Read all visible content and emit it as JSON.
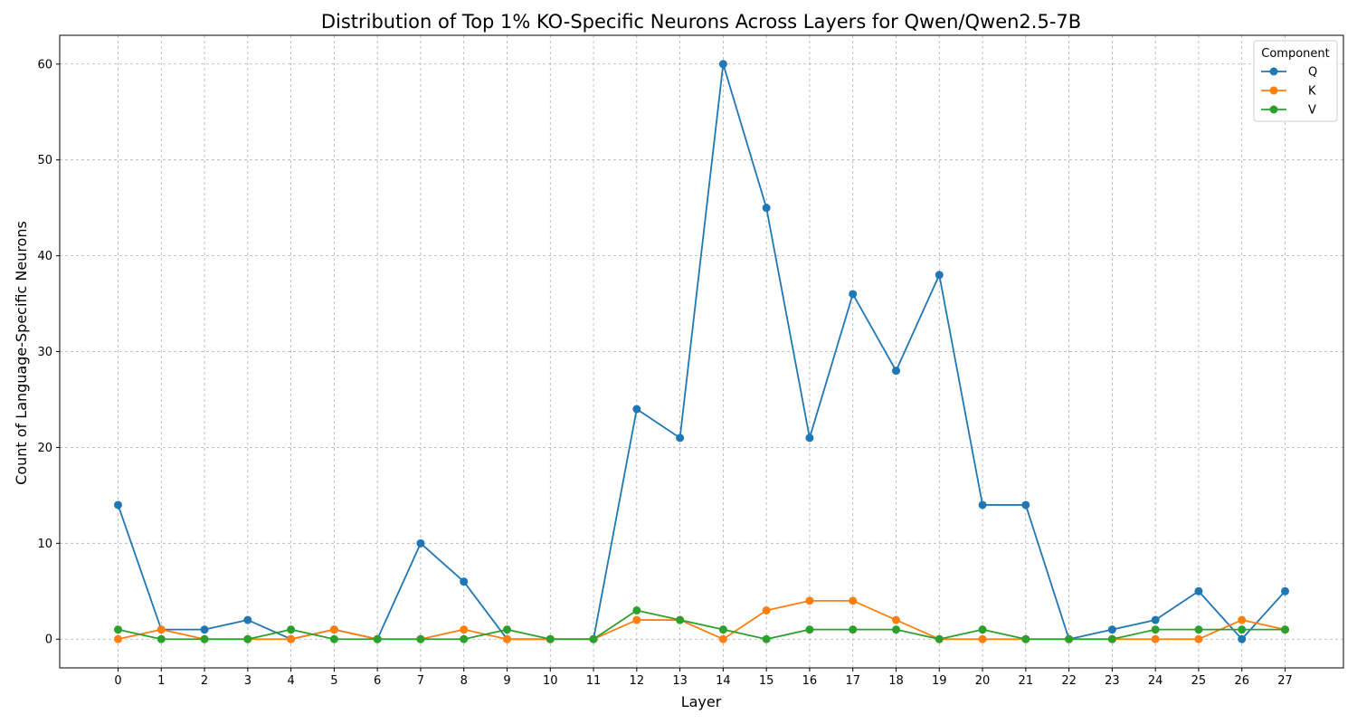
{
  "chart_data": {
    "type": "line",
    "title": "Distribution of Top 1% KO-Specific Neurons Across Layers for Qwen/Qwen2.5-7B",
    "xlabel": "Layer",
    "ylabel": "Count of Language-Specific Neurons",
    "x": [
      0,
      1,
      2,
      3,
      4,
      5,
      6,
      7,
      8,
      9,
      10,
      11,
      12,
      13,
      14,
      15,
      16,
      17,
      18,
      19,
      20,
      21,
      22,
      23,
      24,
      25,
      26,
      27
    ],
    "xlim": [
      -1.35,
      28.35
    ],
    "ylim": [
      -3,
      63
    ],
    "yticks": [
      0,
      10,
      20,
      30,
      40,
      50,
      60
    ],
    "grid": true,
    "legend": {
      "title": "Component",
      "placement": "top-right"
    },
    "series": [
      {
        "name": "Q",
        "color": "#1f77b4",
        "values": [
          14,
          1,
          1,
          2,
          0,
          1,
          0,
          10,
          6,
          0,
          0,
          0,
          24,
          21,
          60,
          45,
          21,
          36,
          28,
          38,
          14,
          14,
          0,
          1,
          2,
          5,
          0,
          5
        ]
      },
      {
        "name": "K",
        "color": "#ff7f0e",
        "values": [
          0,
          1,
          0,
          0,
          0,
          1,
          0,
          0,
          1,
          0,
          0,
          0,
          2,
          2,
          0,
          3,
          4,
          4,
          2,
          0,
          0,
          0,
          0,
          0,
          0,
          0,
          2,
          1
        ]
      },
      {
        "name": "V",
        "color": "#2ca02c",
        "values": [
          1,
          0,
          0,
          0,
          1,
          0,
          0,
          0,
          0,
          1,
          0,
          0,
          3,
          2,
          1,
          0,
          1,
          1,
          1,
          0,
          1,
          0,
          0,
          0,
          1,
          1,
          1,
          1
        ]
      }
    ]
  }
}
